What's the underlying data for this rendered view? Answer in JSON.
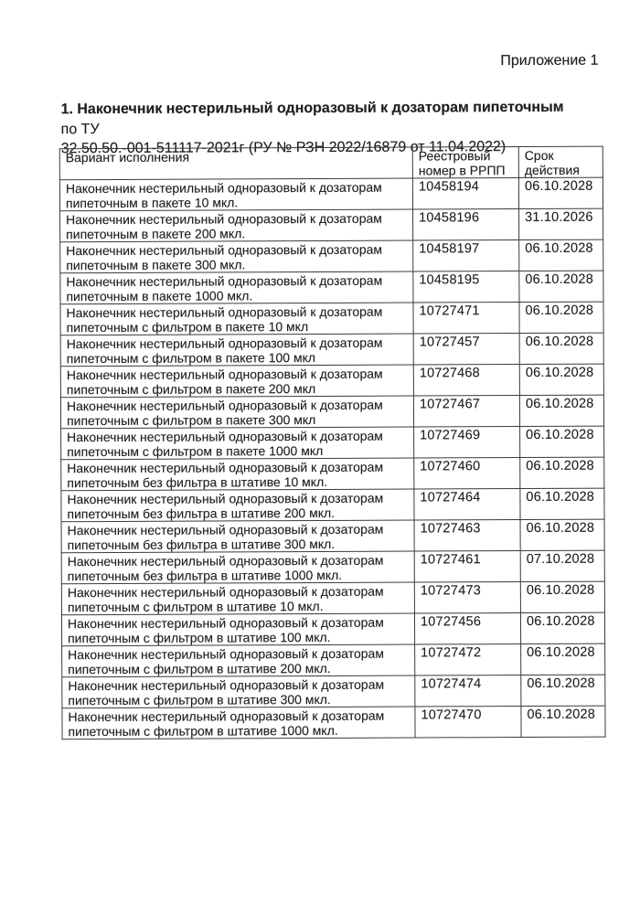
{
  "document": {
    "appendix_label": "Приложение 1",
    "title": {
      "bold": "1. Наконечник нестерильный одноразовый к дозаторам пипеточным",
      "regular_tail": "по ТУ",
      "line2": "32.50.50.-001-511117-2021г (РУ № РЗН 2022/16879 от 11.04.2022)"
    }
  },
  "table": {
    "columns": [
      {
        "label": "Вариант исполнения"
      },
      {
        "label": "Реестровый номер в РРПП"
      },
      {
        "label": "Срок действия"
      }
    ],
    "rows": [
      {
        "variant": "Наконечник нестерильный одноразовый к дозаторам пипеточным в пакете 10 мкл.",
        "number": "10458194",
        "validity": "06.10.2028"
      },
      {
        "variant": "Наконечник нестерильный одноразовый к дозаторам пипеточным в пакете 200 мкл.",
        "number": "10458196",
        "validity": "31.10.2026"
      },
      {
        "variant": "Наконечник нестерильный одноразовый к дозаторам пипеточным в пакете 300 мкл.",
        "number": "10458197",
        "validity": "06.10.2028"
      },
      {
        "variant": "Наконечник нестерильный одноразовый к дозаторам пипеточным в пакете 1000 мкл.",
        "number": "10458195",
        "validity": "06.10.2028"
      },
      {
        "variant": "Наконечник нестерильный одноразовый к дозаторам пипеточным с фильтром в пакете 10 мкл",
        "number": "10727471",
        "validity": "06.10.2028"
      },
      {
        "variant": "Наконечник нестерильный одноразовый к дозаторам пипеточным с фильтром в пакете 100 мкл",
        "number": "10727457",
        "validity": "06.10.2028"
      },
      {
        "variant": "Наконечник нестерильный одноразовый к дозаторам пипеточным с фильтром в пакете 200 мкл",
        "number": "10727468",
        "validity": "06.10.2028"
      },
      {
        "variant": "Наконечник нестерильный одноразовый к дозаторам пипеточным с фильтром в пакете 300 мкл",
        "number": "10727467",
        "validity": "06.10.2028"
      },
      {
        "variant": "Наконечник нестерильный одноразовый к дозаторам пипеточным с фильтром в пакете 1000 мкл",
        "number": "10727469",
        "validity": "06.10.2028"
      },
      {
        "variant": "Наконечник нестерильный одноразовый к дозаторам пипеточным без фильтра в штативе 10 мкл.",
        "number": "10727460",
        "validity": "06.10.2028"
      },
      {
        "variant": "Наконечник нестерильный одноразовый к дозаторам пипеточным без фильтра в штативе 200 мкл.",
        "number": "10727464",
        "validity": "06.10.2028"
      },
      {
        "variant": "Наконечник нестерильный одноразовый к дозаторам пипеточным без фильтра в штативе 300 мкл.",
        "number": "10727463",
        "validity": "06.10.2028"
      },
      {
        "variant": "Наконечник нестерильный одноразовый к дозаторам пипеточным без фильтра в штативе 1000 мкл.",
        "number": "10727461",
        "validity": "07.10.2028"
      },
      {
        "variant": "Наконечник нестерильный одноразовый к дозаторам пипеточным с фильтром в штативе 10 мкл.",
        "number": "10727473",
        "validity": "06.10.2028"
      },
      {
        "variant": "Наконечник нестерильный одноразовый к дозаторам пипеточным с фильтром в штативе 100 мкл.",
        "number": "10727456",
        "validity": "06.10.2028"
      },
      {
        "variant": "Наконечник нестерильный одноразовый к дозаторам пипеточным с фильтром в штативе 200 мкл.",
        "number": "10727472",
        "validity": "06.10.2028"
      },
      {
        "variant": "Наконечник нестерильный одноразовый к дозаторам пипеточным с фильтром в штативе 300 мкл.",
        "number": "10727474",
        "validity": "06.10.2028"
      },
      {
        "variant": "Наконечник нестерильный одноразовый к дозаторам пипеточным с фильтром в штативе 1000 мкл.",
        "number": "10727470",
        "validity": "06.10.2028"
      }
    ]
  },
  "colors": {
    "text": "#1e1e1e",
    "border": "#3a3a3a",
    "background": "#ffffff"
  }
}
